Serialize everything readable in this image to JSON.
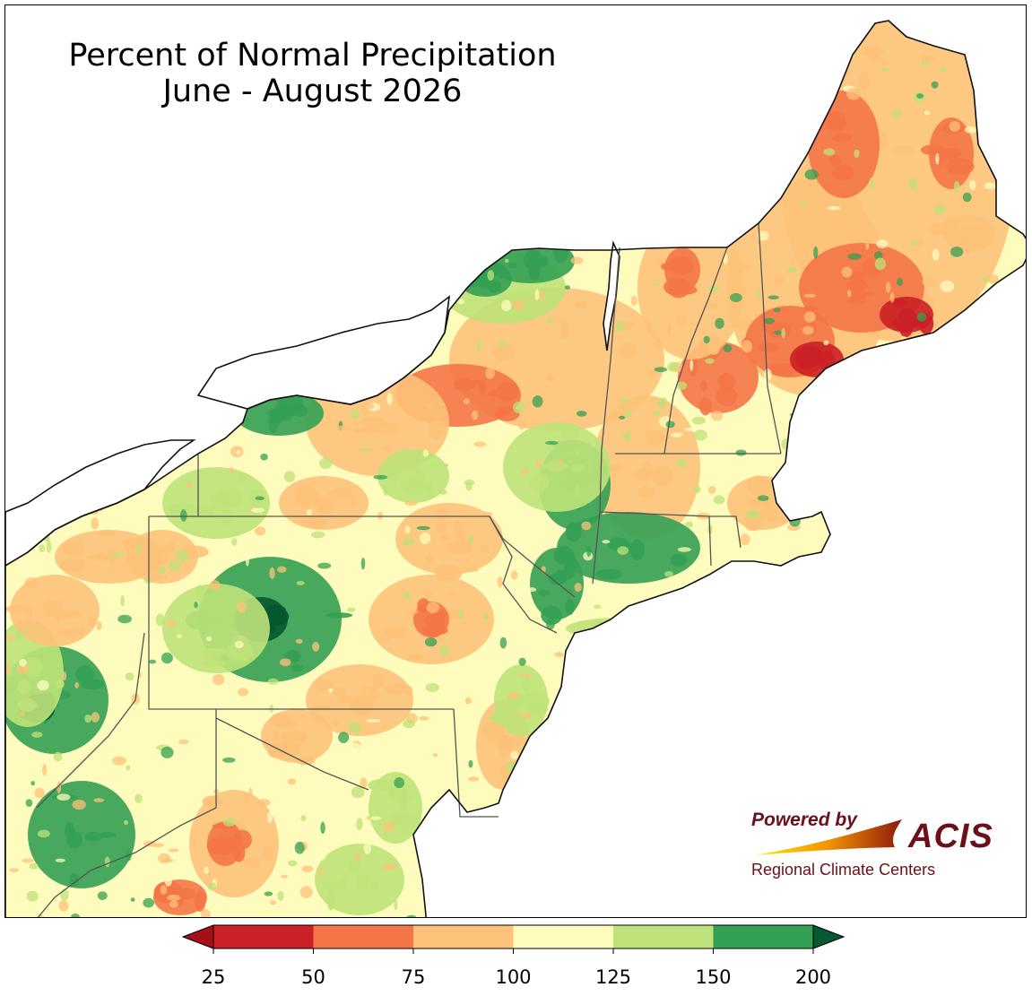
{
  "title": {
    "line1": "Percent of Normal Precipitation",
    "line2": "June - August 2026"
  },
  "logo": {
    "powered_by": "Powered by",
    "name": "ACIS",
    "subtitle": "Regional Climate Centers"
  },
  "legend": {
    "ticks": [
      "25",
      "50",
      "75",
      "100",
      "125",
      "150",
      "200"
    ],
    "bins": [
      {
        "range": "<25",
        "color": "#a50f15"
      },
      {
        "range": "25-50",
        "color": "#cb2026"
      },
      {
        "range": "50-75",
        "color": "#f47548"
      },
      {
        "range": "75-100",
        "color": "#fdc27a"
      },
      {
        "range": "100-125",
        "color": "#fefcbc"
      },
      {
        "range": "125-150",
        "color": "#bfe27a"
      },
      {
        "range": "150-200",
        "color": "#34a053"
      },
      {
        "range": ">200",
        "color": "#05582f"
      }
    ]
  },
  "palette": {
    "water": "#ffffff",
    "boundary": "#555555",
    "coast": "#111111"
  }
}
